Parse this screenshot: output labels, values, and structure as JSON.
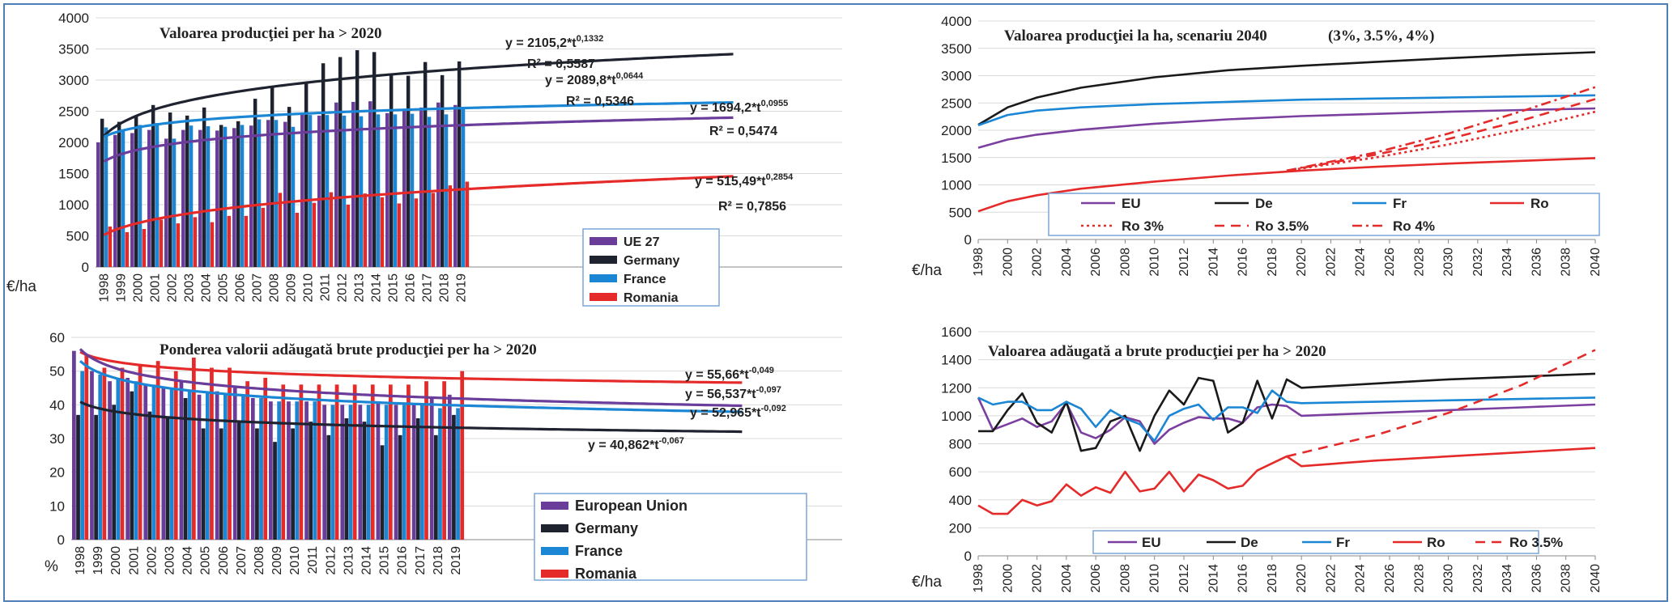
{
  "chart_data": [
    {
      "id": "c1",
      "type": "bar",
      "title": "Valoarea producţiei per ha > 2020",
      "ylabel": "€/ha",
      "ylim": [
        0,
        4000
      ],
      "yticks": [
        0,
        500,
        1000,
        1500,
        2000,
        2500,
        3000,
        3500,
        4000
      ],
      "categories": [
        "1998",
        "1999",
        "2000",
        "2001",
        "2002",
        "2003",
        "2004",
        "2005",
        "2006",
        "2007",
        "2008",
        "2009",
        "2010",
        "2011",
        "2012",
        "2013",
        "2014",
        "2015",
        "2016",
        "2017",
        "2018",
        "2019"
      ],
      "legend_position": "bottom-right",
      "series": [
        {
          "name": "UE 27",
          "color": "#6a3d9a",
          "values": [
            2000,
            2120,
            2150,
            2200,
            2060,
            2200,
            2200,
            2190,
            2230,
            2270,
            2360,
            2330,
            2480,
            2430,
            2640,
            2650,
            2660,
            2470,
            2540,
            2560,
            2640,
            2600
          ]
        },
        {
          "name": "Germany",
          "color": "#1f2330",
          "values": [
            2380,
            2330,
            2420,
            2600,
            2480,
            2430,
            2560,
            2280,
            2340,
            2700,
            2900,
            2570,
            2960,
            3270,
            3370,
            3480,
            3450,
            3090,
            3070,
            3290,
            3080,
            3300
          ]
        },
        {
          "name": "France",
          "color": "#1a86d4",
          "values": [
            2240,
            2210,
            2280,
            2310,
            2060,
            2270,
            2260,
            2250,
            2280,
            2370,
            2360,
            2250,
            2440,
            2440,
            2430,
            2420,
            2450,
            2450,
            2460,
            2410,
            2450,
            2550
          ]
        },
        {
          "name": "Romania",
          "color": "#e52a2a",
          "values": [
            650,
            560,
            610,
            760,
            700,
            800,
            720,
            820,
            820,
            950,
            1190,
            870,
            1030,
            1200,
            1000,
            1180,
            1120,
            1020,
            1100,
            1190,
            1310,
            1370
          ]
        }
      ],
      "trendlines": [
        {
          "series": "Germany",
          "equation": "y = 2105,2*t^0,1332",
          "eq_main": "y = 2105,2*t",
          "eq_exp": "0,1332",
          "r2": "R² = 0,5587"
        },
        {
          "series": "France",
          "equation": "y = 2089,8*t^0,0644",
          "eq_main": "y = 2089,8*t",
          "eq_exp": "0,0644",
          "r2": "R² = 0,5346"
        },
        {
          "series": "UE 27",
          "equation": "y = 1694,2*t^0,0955",
          "eq_main": "y = 1694,2*t",
          "eq_exp": "0,0955",
          "r2": "R² = 0,5474"
        },
        {
          "series": "Romania",
          "equation": "y = 515,49*t^0,2854",
          "eq_main": "y = 515,49*t",
          "eq_exp": "0,2854",
          "r2": "R² = 0,7856"
        }
      ]
    },
    {
      "id": "c2",
      "type": "line",
      "title": "Valoarea producţiei la ha, scenariu 2040",
      "title_note": "(3%, 3.5%, 4%)",
      "ylabel": "€/ha",
      "ylim": [
        0,
        4000
      ],
      "yticks": [
        0,
        500,
        1000,
        1500,
        2000,
        2500,
        3000,
        3500,
        4000
      ],
      "xticks": [
        "1998",
        "2000",
        "2002",
        "2004",
        "2006",
        "2008",
        "2010",
        "2012",
        "2014",
        "2016",
        "2018",
        "2020",
        "2022",
        "2024",
        "2026",
        "2028",
        "2030",
        "2032",
        "2034",
        "2036",
        "2038",
        "2040"
      ],
      "xrange": [
        1998,
        2040
      ],
      "legend_position": "bottom",
      "series": [
        {
          "name": "EU",
          "color": "#7b3fa0",
          "dash": "solid",
          "x": [
            1998,
            2000,
            2002,
            2005,
            2010,
            2015,
            2020,
            2025,
            2030,
            2035,
            2040
          ],
          "y": [
            1680,
            1830,
            1920,
            2010,
            2120,
            2200,
            2260,
            2300,
            2340,
            2370,
            2400
          ]
        },
        {
          "name": "De",
          "color": "#1a1a1a",
          "dash": "solid",
          "x": [
            1998,
            2000,
            2002,
            2005,
            2010,
            2015,
            2020,
            2025,
            2030,
            2035,
            2040
          ],
          "y": [
            2100,
            2420,
            2600,
            2780,
            2970,
            3100,
            3180,
            3250,
            3320,
            3380,
            3430
          ]
        },
        {
          "name": "Fr",
          "color": "#1a86d4",
          "dash": "solid",
          "x": [
            1998,
            2000,
            2002,
            2005,
            2010,
            2015,
            2020,
            2025,
            2030,
            2035,
            2040
          ],
          "y": [
            2090,
            2280,
            2360,
            2420,
            2480,
            2520,
            2560,
            2580,
            2600,
            2620,
            2640
          ]
        },
        {
          "name": "Ro",
          "color": "#e52a2a",
          "dash": "solid",
          "x": [
            1998,
            2000,
            2002,
            2005,
            2010,
            2015,
            2020,
            2025,
            2030,
            2035,
            2040
          ],
          "y": [
            515,
            700,
            810,
            930,
            1060,
            1170,
            1260,
            1330,
            1390,
            1440,
            1490
          ]
        },
        {
          "name": "Ro 3%",
          "color": "#e52a2a",
          "dash": "dotted",
          "x": [
            2019,
            2025,
            2030,
            2035,
            2040
          ],
          "y": [
            1260,
            1500,
            1740,
            2020,
            2340
          ]
        },
        {
          "name": "Ro 3.5%",
          "color": "#e52a2a",
          "dash": "dashed",
          "x": [
            2019,
            2025,
            2030,
            2035,
            2040
          ],
          "y": [
            1260,
            1550,
            1840,
            2180,
            2570
          ]
        },
        {
          "name": "Ro 4%",
          "color": "#e52a2a",
          "dash": "dashdot",
          "x": [
            2019,
            2025,
            2030,
            2035,
            2040
          ],
          "y": [
            1260,
            1590,
            1940,
            2350,
            2790
          ]
        }
      ]
    },
    {
      "id": "c3",
      "type": "bar",
      "title": "Ponderea valorii adăugată brute producţiei per ha > 2020",
      "ylabel": "%",
      "ylim": [
        0,
        60
      ],
      "yticks": [
        0,
        10,
        20,
        30,
        40,
        50,
        60
      ],
      "categories": [
        "1998",
        "1999",
        "2000",
        "2001",
        "2002",
        "2003",
        "2004",
        "2005",
        "2006",
        "2007",
        "2008",
        "2009",
        "2010",
        "2011",
        "2012",
        "2013",
        "2014",
        "2015",
        "2016",
        "2017",
        "2018",
        "2019"
      ],
      "legend_position": "bottom-right",
      "series": [
        {
          "name": "European Union",
          "color": "#6a3d9a",
          "values": [
            56,
            50,
            47,
            48,
            46,
            45,
            47,
            43,
            44,
            45,
            42,
            41,
            41,
            41,
            40,
            40,
            40,
            41,
            40,
            40,
            42,
            43
          ]
        },
        {
          "name": "Germany",
          "color": "#1f2330",
          "values": [
            37,
            37,
            40,
            44,
            38,
            36,
            42,
            33,
            33,
            35,
            33,
            29,
            33,
            35,
            31,
            36,
            35,
            28,
            31,
            36,
            31,
            37
          ]
        },
        {
          "name": "France",
          "color": "#1a86d4",
          "values": [
            50,
            49,
            48,
            47,
            46,
            45,
            44,
            44,
            43,
            43,
            42,
            41,
            41,
            41,
            40,
            40,
            40,
            40,
            40,
            40,
            39,
            39
          ]
        },
        {
          "name": "Romania",
          "color": "#e52a2a",
          "values": [
            55,
            51,
            51,
            52,
            53,
            50,
            54,
            51,
            51,
            47,
            48,
            46,
            46,
            46,
            46,
            46,
            46,
            46,
            46,
            47,
            47,
            50
          ]
        }
      ],
      "trendlines": [
        {
          "series": "Romania",
          "equation": "y = 55,66*t^-0,049",
          "eq_main": "y = 55,66*t",
          "eq_exp": "-0,049"
        },
        {
          "series": "European Union",
          "equation": "y = 56,537*t^-0,097",
          "eq_main": "y = 56,537*t",
          "eq_exp": "-0,097"
        },
        {
          "series": "France",
          "equation": "y = 52,965*t^-0,092",
          "eq_main": "y = 52,965*t",
          "eq_exp": "-0,092"
        },
        {
          "series": "Germany",
          "equation": "y = 40,862*t^-0,067",
          "eq_main": "y = 40,862*t",
          "eq_exp": "-0,067"
        }
      ]
    },
    {
      "id": "c4",
      "type": "line",
      "title": "Valoarea adăugată a brute producţiei per ha > 2020",
      "ylabel": "€/ha",
      "ylim": [
        0,
        1600
      ],
      "yticks": [
        0,
        200,
        400,
        600,
        800,
        1000,
        1200,
        1400,
        1600
      ],
      "xticks": [
        "1998",
        "2000",
        "2002",
        "2004",
        "2006",
        "2008",
        "2010",
        "2012",
        "2014",
        "2016",
        "2018",
        "2020",
        "2022",
        "2024",
        "2026",
        "2028",
        "2030",
        "2032",
        "2034",
        "2036",
        "2038",
        "2040"
      ],
      "xrange": [
        1998,
        2040
      ],
      "legend_position": "bottom",
      "series": [
        {
          "name": "EU",
          "color": "#7b3fa0",
          "dash": "solid",
          "x": [
            1998,
            1999,
            2000,
            2001,
            2002,
            2003,
            2004,
            2005,
            2006,
            2007,
            2008,
            2009,
            2010,
            2011,
            2012,
            2013,
            2014,
            2015,
            2016,
            2017,
            2018,
            2019,
            2020,
            2025,
            2030,
            2035,
            2040
          ],
          "y": [
            1130,
            900,
            940,
            980,
            920,
            960,
            1090,
            880,
            840,
            900,
            990,
            960,
            800,
            900,
            950,
            990,
            980,
            980,
            950,
            1060,
            1080,
            1070,
            1000,
            1020,
            1040,
            1060,
            1080
          ]
        },
        {
          "name": "De",
          "color": "#1a1a1a",
          "dash": "solid",
          "x": [
            1998,
            1999,
            2000,
            2001,
            2002,
            2003,
            2004,
            2005,
            2006,
            2007,
            2008,
            2009,
            2010,
            2011,
            2012,
            2013,
            2014,
            2015,
            2016,
            2017,
            2018,
            2019,
            2020,
            2025,
            2030,
            2035,
            2040
          ],
          "y": [
            890,
            890,
            1040,
            1160,
            950,
            880,
            1100,
            750,
            770,
            960,
            1000,
            750,
            1000,
            1180,
            1080,
            1270,
            1250,
            880,
            950,
            1250,
            980,
            1260,
            1200,
            1230,
            1260,
            1280,
            1300
          ]
        },
        {
          "name": "Fr",
          "color": "#1a86d4",
          "dash": "solid",
          "x": [
            1998,
            1999,
            2000,
            2001,
            2002,
            2003,
            2004,
            2005,
            2006,
            2007,
            2008,
            2009,
            2010,
            2011,
            2012,
            2013,
            2014,
            2015,
            2016,
            2017,
            2018,
            2019,
            2020,
            2025,
            2030,
            2035,
            2040
          ],
          "y": [
            1130,
            1080,
            1100,
            1100,
            1040,
            1040,
            1100,
            1050,
            920,
            1040,
            980,
            940,
            820,
            1000,
            1050,
            1080,
            970,
            1060,
            1060,
            1020,
            1180,
            1100,
            1090,
            1100,
            1110,
            1120,
            1130
          ]
        },
        {
          "name": "Ro",
          "color": "#e52a2a",
          "dash": "solid",
          "x": [
            1998,
            1999,
            2000,
            2001,
            2002,
            2003,
            2004,
            2005,
            2006,
            2007,
            2008,
            2009,
            2010,
            2011,
            2012,
            2013,
            2014,
            2015,
            2016,
            2017,
            2018,
            2019,
            2020,
            2025,
            2030,
            2035,
            2040
          ],
          "y": [
            360,
            300,
            300,
            400,
            360,
            390,
            510,
            430,
            490,
            450,
            600,
            460,
            480,
            600,
            460,
            580,
            540,
            480,
            500,
            610,
            660,
            710,
            640,
            680,
            710,
            740,
            770
          ]
        },
        {
          "name": "Ro 3.5%",
          "color": "#e52a2a",
          "dash": "dashed",
          "x": [
            2019,
            2025,
            2030,
            2035,
            2040
          ],
          "y": [
            710,
            860,
            1020,
            1220,
            1470
          ]
        }
      ]
    }
  ]
}
